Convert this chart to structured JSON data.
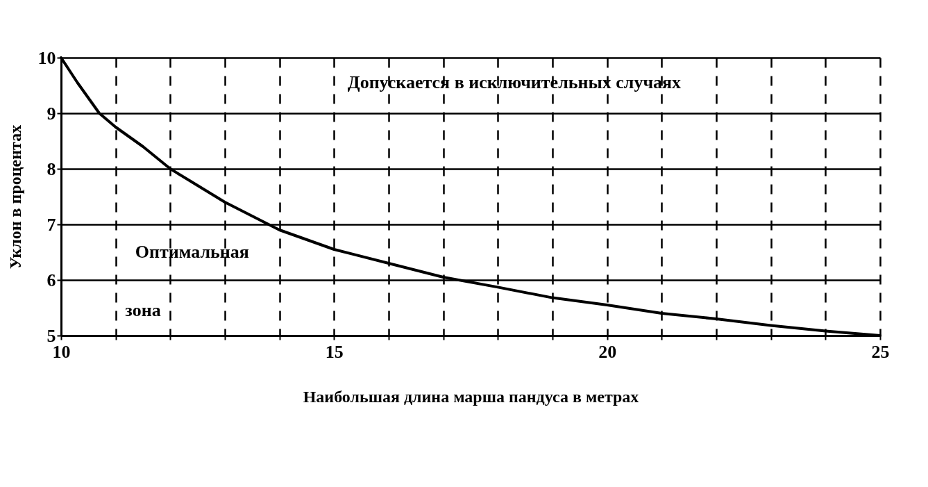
{
  "chart_data": {
    "type": "line",
    "xlabel": "Наибольшая длина марша пандуса в метрах",
    "ylabel": "Уклон в процентах",
    "x": [
      10,
      10.3,
      10.7,
      11,
      11.5,
      12,
      12.5,
      13,
      14,
      15,
      16,
      17,
      18,
      19,
      20,
      21,
      22,
      23,
      24,
      25
    ],
    "series": [
      {
        "color": "#000000",
        "values": [
          10,
          9.55,
          9,
          8.75,
          8.4,
          8.0,
          7.7,
          7.4,
          6.9,
          6.55,
          6.3,
          6.05,
          5.87,
          5.68,
          5.55,
          5.4,
          5.3,
          5.18,
          5.08,
          5.0
        ]
      }
    ],
    "xlim": [
      10,
      25
    ],
    "ylim": [
      5,
      10
    ],
    "xticks": [
      10,
      {
        "value": 11,
        "label": null
      },
      {
        "value": 12,
        "label": null
      },
      {
        "value": 13,
        "label": null
      },
      {
        "value": 14,
        "label": null
      },
      15,
      {
        "value": 16,
        "label": null
      },
      {
        "value": 17,
        "label": null
      },
      {
        "value": 18,
        "label": null
      },
      {
        "value": 19,
        "label": null
      },
      20,
      {
        "value": 21,
        "label": null
      },
      {
        "value": 22,
        "label": null
      },
      {
        "value": 23,
        "label": null
      },
      {
        "value": 24,
        "label": null
      },
      25
    ],
    "yticks": [
      5,
      6,
      7,
      8,
      9,
      10
    ],
    "grid": true,
    "legend": false,
    "marker": "none",
    "line_style": "solid",
    "annotations": [
      "Допускается в исключительных случаях",
      "Оптимальная",
      "зона"
    ]
  }
}
